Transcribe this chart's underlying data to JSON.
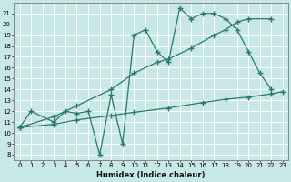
{
  "xlabel": "Humidex (Indice chaleur)",
  "xlim": [
    -0.5,
    23.5
  ],
  "ylim": [
    7.5,
    22.0
  ],
  "yticks": [
    8,
    9,
    10,
    11,
    12,
    13,
    14,
    15,
    16,
    17,
    18,
    19,
    20,
    21
  ],
  "xticks": [
    0,
    1,
    2,
    3,
    4,
    5,
    6,
    7,
    8,
    9,
    10,
    11,
    12,
    13,
    14,
    15,
    16,
    17,
    18,
    19,
    20,
    21,
    22,
    23
  ],
  "bg_color": "#c8e8e8",
  "line_color": "#2a7a6a",
  "line1_x": [
    0,
    1,
    3,
    4,
    5,
    6,
    7,
    8,
    9,
    10,
    11,
    12,
    13,
    14,
    15,
    16,
    17,
    18,
    19,
    20,
    21,
    22
  ],
  "line1_y": [
    10.5,
    12.0,
    11.0,
    12.0,
    11.8,
    12.0,
    8.0,
    13.5,
    9.0,
    19.0,
    19.5,
    17.5,
    16.5,
    21.5,
    20.5,
    21.0,
    21.0,
    20.5,
    19.5,
    17.5,
    15.5,
    14.0
  ],
  "line2_x": [
    0,
    3,
    5,
    8,
    10,
    12,
    13,
    15,
    17,
    18,
    19,
    20,
    22
  ],
  "line2_y": [
    10.5,
    11.5,
    12.5,
    14.0,
    15.5,
    16.5,
    16.8,
    17.8,
    19.0,
    19.5,
    20.2,
    20.5,
    20.5
  ],
  "line3_x": [
    0,
    3,
    5,
    8,
    10,
    13,
    16,
    18,
    20,
    22,
    23
  ],
  "line3_y": [
    10.5,
    10.8,
    11.2,
    11.6,
    11.9,
    12.3,
    12.8,
    13.1,
    13.3,
    13.6,
    13.8
  ]
}
